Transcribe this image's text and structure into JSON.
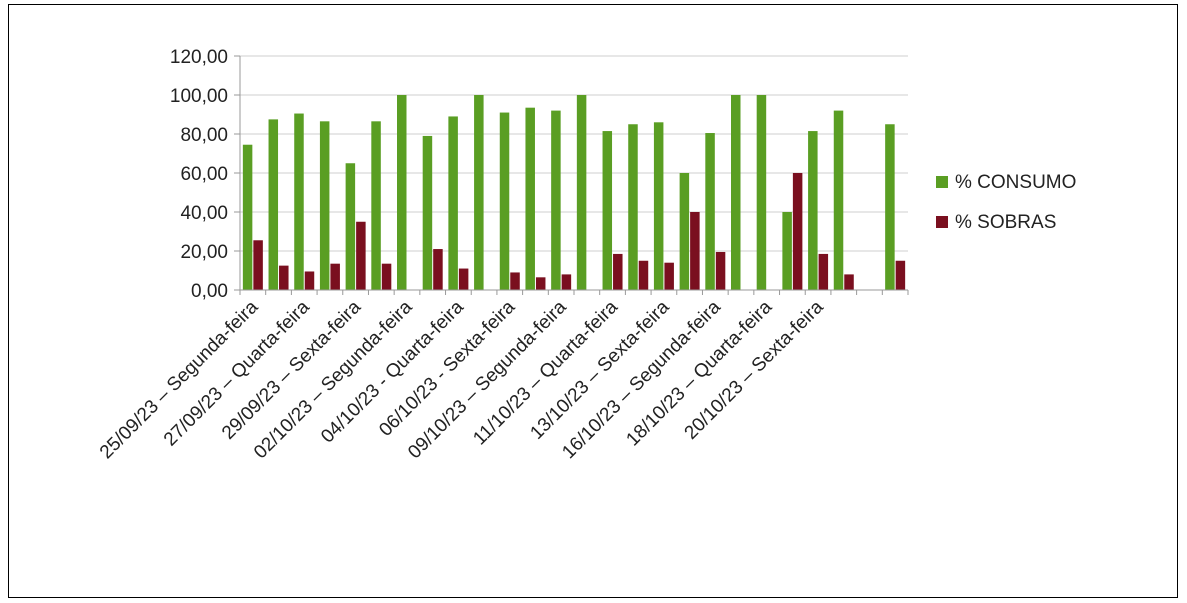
{
  "chart_data": {
    "type": "bar",
    "title": "",
    "xlabel": "",
    "ylabel": "",
    "ylim": [
      0,
      120
    ],
    "yticks": [
      "0,00",
      "20,00",
      "40,00",
      "60,00",
      "80,00",
      "100,00",
      "120,00"
    ],
    "grid": "horizontal",
    "legend_position": "right",
    "tick_labels_shown": [
      "25/09/23 – Segunda-feira",
      "27/09/23 – Quarta-feira",
      "29/09/23 – Sexta-feira",
      "02/10/23 – Segunda-feira",
      "04/10/23 -  Quarta-feira",
      "06/10/23 -  Sexta-feira",
      "09/10/23 – Segunda-feira",
      "11/10/23 – Quarta-feira",
      "13/10/23 – Sexta-feira",
      "16/10/23 – Segunda-feira",
      "18/10/23 – Quarta-feira",
      "20/10/23 – Sexta-feira"
    ],
    "series": [
      {
        "name": "% CONSUMO",
        "color": "#5a9e23",
        "values": [
          74.5,
          87.5,
          90.5,
          86.5,
          65,
          86.5,
          100,
          79,
          89,
          100,
          91,
          93.5,
          92,
          100,
          81.5,
          85,
          86,
          60,
          80.5,
          100,
          100,
          40,
          81.5,
          92,
          0,
          85
        ]
      },
      {
        "name": "% SOBRAS",
        "color": "#7a0f1f",
        "values": [
          25.5,
          12.5,
          9.5,
          13.5,
          35,
          13.5,
          0,
          21,
          11,
          0,
          9,
          6.5,
          8,
          0,
          18.5,
          15,
          14,
          40,
          19.5,
          0,
          0,
          60,
          18.5,
          8,
          0,
          15
        ]
      }
    ]
  }
}
